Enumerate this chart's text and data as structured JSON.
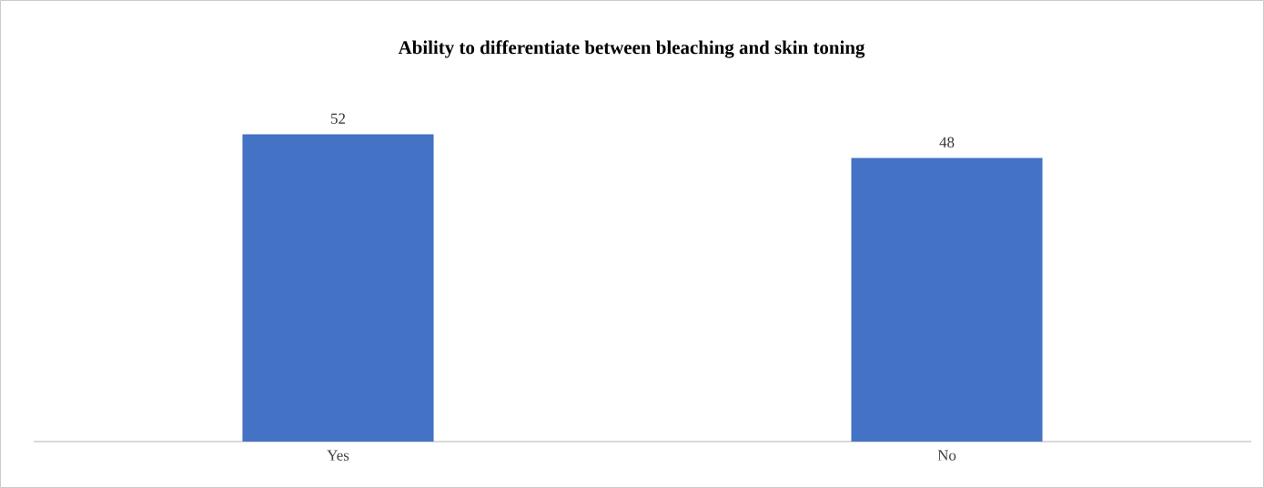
{
  "chart_data": {
    "type": "bar",
    "title": "Ability to differentiate between bleaching and skin toning",
    "categories": [
      "Yes",
      "No"
    ],
    "values": [
      52,
      48
    ],
    "color": "#4472c4",
    "tick_labels": "x",
    "data_labels": true
  }
}
